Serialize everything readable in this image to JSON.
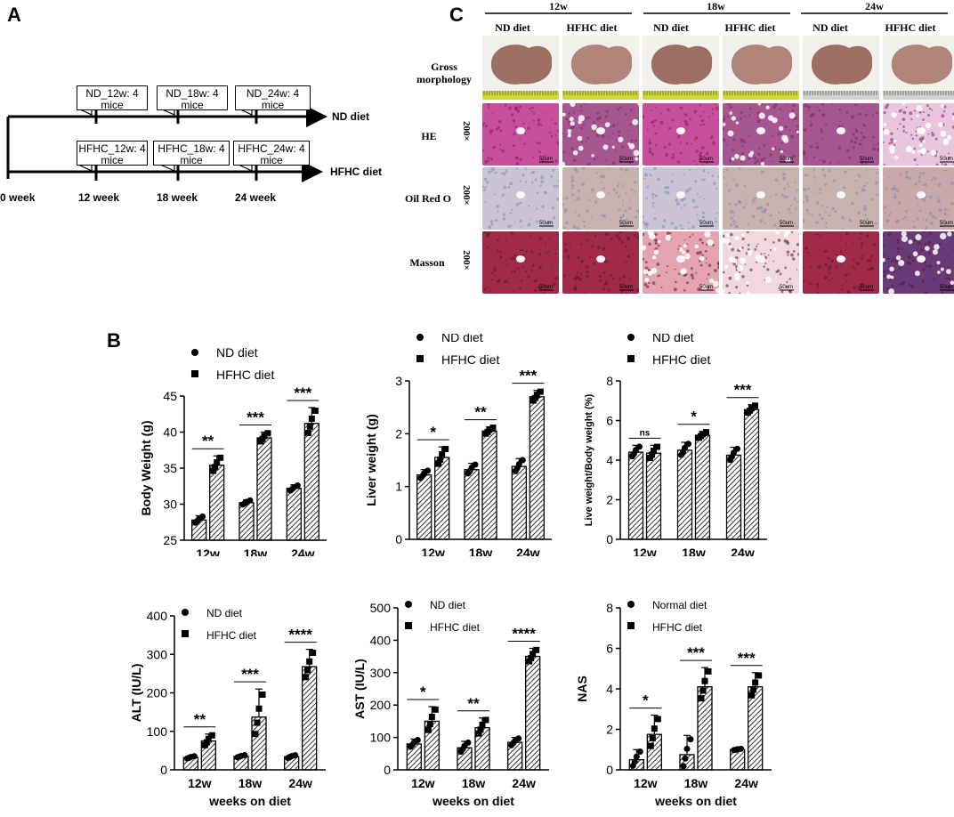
{
  "panels": {
    "a": "A",
    "b": "B",
    "c": "C"
  },
  "timeline": {
    "nd_boxes": [
      "ND_12w: 4 mice",
      "ND_18w: 4 mice",
      "ND_24w: 4 mice"
    ],
    "hfhc_boxes": [
      "HFHC_12w: 4 mice",
      "HFHC_18w: 4 mice",
      "HFHC_24w: 4 mice"
    ],
    "nd_label": "ND diet",
    "hfhc_label": "HFHC diet",
    "ticks": [
      "0 week",
      "12 week",
      "18 week",
      "24 week"
    ]
  },
  "histology": {
    "weeks": [
      "12w",
      "18w",
      "24w"
    ],
    "diets": [
      "ND diet",
      "HFHC diet",
      "ND diet",
      "HFHC diet",
      "ND diet",
      "HFHC diet"
    ],
    "rows": [
      "Gross morphology",
      "HE",
      "Oil Red O",
      "Masson"
    ],
    "magnification": "200×",
    "scale_bar": "50um"
  },
  "colors": {
    "bar_hatch": "#000000",
    "liver_gross": "#9c6f62",
    "he": "#c74f9b",
    "oil": "#c9c3d4",
    "masson": "#a02a47"
  },
  "chart_data": [
    {
      "type": "bar",
      "ylabel": "Body Weight (g)",
      "xlabel": "weeks on diet",
      "categories": [
        "12w",
        "18w",
        "24w"
      ],
      "ylim": [
        25,
        45
      ],
      "ticks": [
        25,
        30,
        35,
        40,
        45
      ],
      "legend": [
        "ND diet",
        "HFHC diet"
      ],
      "series": [
        {
          "name": "ND diet",
          "values": [
            27.8,
            30.2,
            32.2
          ],
          "err": [
            0.6,
            0.4,
            0.5
          ]
        },
        {
          "name": "HFHC diet",
          "values": [
            35.4,
            39.2,
            41.2
          ],
          "err": [
            1.3,
            0.8,
            2.2
          ]
        }
      ],
      "sig": [
        "**",
        "***",
        "***"
      ]
    },
    {
      "type": "bar",
      "ylabel": "Liver weight (g)",
      "xlabel": "weeks on diet",
      "categories": [
        "12w",
        "18w",
        "24w"
      ],
      "ylim": [
        0,
        3
      ],
      "ticks": [
        0,
        1,
        2,
        3
      ],
      "legend": [
        "ND diet",
        "HFHC diet"
      ],
      "series": [
        {
          "name": "ND diet",
          "values": [
            1.22,
            1.32,
            1.38
          ],
          "err": [
            0.1,
            0.12,
            0.15
          ]
        },
        {
          "name": "HFHC diet",
          "values": [
            1.55,
            2.05,
            2.7
          ],
          "err": [
            0.2,
            0.08,
            0.12
          ]
        }
      ],
      "sig": [
        "*",
        "**",
        "***"
      ]
    },
    {
      "type": "bar",
      "ylabel": "Live weight/Body weight (%)",
      "xlabel": "weeks on diet",
      "categories": [
        "12w",
        "18w",
        "24w"
      ],
      "ylim": [
        0,
        8
      ],
      "ticks": [
        0,
        2,
        4,
        6,
        8
      ],
      "legend": [
        "ND diet",
        "HFHC diet"
      ],
      "series": [
        {
          "name": "ND diet",
          "values": [
            4.4,
            4.5,
            4.25
          ],
          "err": [
            0.35,
            0.4,
            0.4
          ]
        },
        {
          "name": "HFHC diet",
          "values": [
            4.35,
            5.25,
            6.55
          ],
          "err": [
            0.4,
            0.2,
            0.25
          ]
        }
      ],
      "sig": [
        "ns",
        "*",
        "***"
      ]
    },
    {
      "type": "bar",
      "ylabel": "ALT (IU/L)",
      "xlabel": "weeks on diet",
      "categories": [
        "12w",
        "18w",
        "24w"
      ],
      "ylim": [
        0,
        400
      ],
      "ticks": [
        0,
        100,
        200,
        300,
        400
      ],
      "legend": [
        "ND diet",
        "HFHC diet"
      ],
      "series": [
        {
          "name": "ND diet",
          "values": [
            32,
            35,
            34
          ],
          "err": [
            4,
            4,
            5
          ]
        },
        {
          "name": "HFHC diet",
          "values": [
            75,
            137,
            268
          ],
          "err": [
            18,
            73,
            45
          ]
        }
      ],
      "sig": [
        "**",
        "***",
        "****"
      ]
    },
    {
      "type": "bar",
      "ylabel": "AST (IU/L)",
      "xlabel": "weeks on diet",
      "categories": [
        "12w",
        "18w",
        "24w"
      ],
      "ylim": [
        0,
        500
      ],
      "ticks": [
        0,
        100,
        200,
        300,
        400,
        500
      ],
      "legend": [
        "ND diet",
        "HFHC diet"
      ],
      "series": [
        {
          "name": "ND diet",
          "values": [
            80,
            68,
            85
          ],
          "err": [
            15,
            20,
            15
          ]
        },
        {
          "name": "HFHC diet",
          "values": [
            150,
            130,
            350
          ],
          "err": [
            45,
            30,
            25
          ]
        }
      ],
      "sig": [
        "*",
        "**",
        "****"
      ]
    },
    {
      "type": "bar",
      "ylabel": "NAS",
      "xlabel": "weeks on diet",
      "categories": [
        "12w",
        "18w",
        "24w"
      ],
      "ylim": [
        0,
        8
      ],
      "ticks": [
        0,
        2,
        4,
        6,
        8
      ],
      "legend": [
        "Normal diet",
        "HFHC diet"
      ],
      "series": [
        {
          "name": "Normal diet",
          "values": [
            0.5,
            0.75,
            1.0
          ],
          "err": [
            0.5,
            0.95,
            0.05
          ]
        },
        {
          "name": "HFHC diet",
          "values": [
            1.75,
            4.1,
            4.1
          ],
          "err": [
            0.95,
            0.95,
            0.7
          ]
        }
      ],
      "sig": [
        "*",
        "***",
        "***"
      ]
    }
  ]
}
